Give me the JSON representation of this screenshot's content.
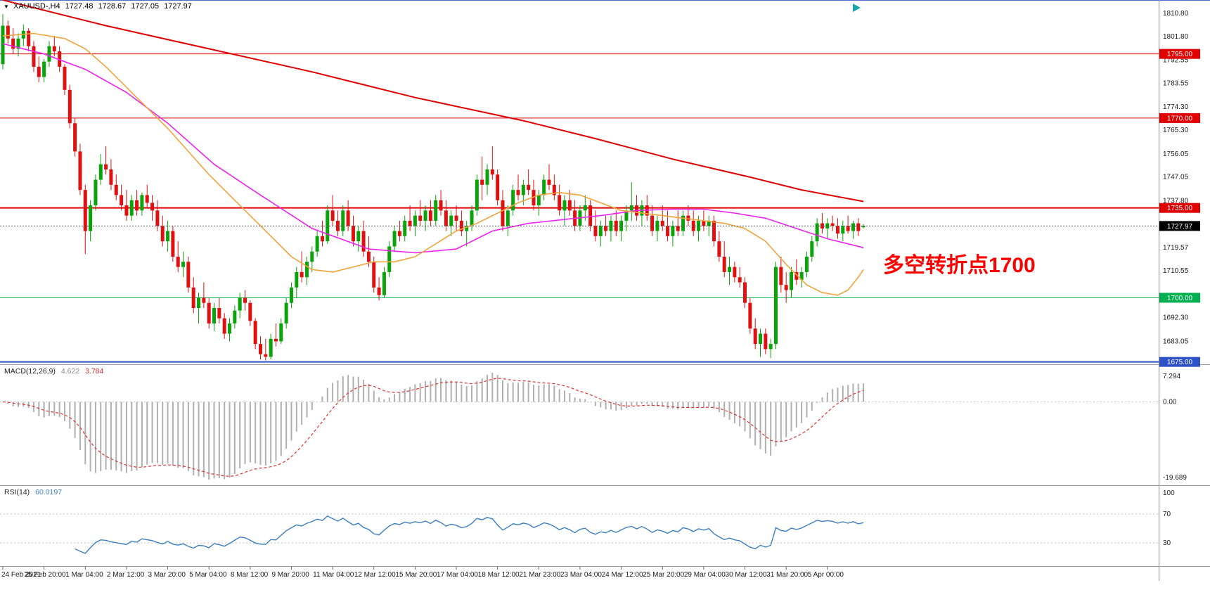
{
  "header": {
    "dropdown_glyph": "▼",
    "symbol_timeframe": "XAUUSD-,H4",
    "open": "1727.48",
    "high": "1728.67",
    "low": "1727.05",
    "close": "1727.97"
  },
  "annotation": {
    "text": "多空转折点1700",
    "color": "#ff0000"
  },
  "indicators": {
    "macd": {
      "name": "MACD(12,26,9)",
      "main_value": "4.622",
      "signal_value": "3.784",
      "axis_max_label": "7.294",
      "axis_zero_label": "0.00",
      "axis_min_label": "-19.689",
      "params": {
        "fast": 12,
        "slow": 26,
        "signal": 9
      },
      "histogram_color": "#b0b0b0",
      "signal_color": "#e03131"
    },
    "rsi": {
      "name": "RSI(14)",
      "value": "60.0197",
      "period": 14,
      "levels": [
        70,
        30
      ],
      "axis_labels": [
        "100",
        "70",
        "30"
      ],
      "line_color": "#3e7fc1"
    }
  },
  "price_axis": {
    "labels": [
      1810.8,
      1801.8,
      1792.55,
      1783.55,
      1774.3,
      1765.3,
      1756.05,
      1747.05,
      1737.8,
      1719.57,
      1710.55,
      1692.3,
      1683.05
    ]
  },
  "hlines": [
    {
      "price": 1795.0,
      "tag": "1795.00",
      "color": "#e00000",
      "width": 1
    },
    {
      "price": 1770.0,
      "tag": "1770.00",
      "color": "#e00000",
      "width": 1
    },
    {
      "price": 1735.0,
      "tag": "1735.00",
      "color": "#e00000",
      "width": 2
    },
    {
      "price": 1700.0,
      "tag": "1700.00",
      "color": "#00b050",
      "width": 1
    },
    {
      "price": 1675.0,
      "tag": "1675.00",
      "color": "#2d52c8",
      "width": 2
    }
  ],
  "current_price": {
    "value": 1727.97,
    "tag": "1727.97",
    "line_color": "#555555",
    "tag_bg": "#000000"
  },
  "time_axis": {
    "bars_per_label": 8,
    "labels": [
      "24 Feb 2021",
      "25 Feb 20:00",
      "1 Mar 04:00",
      "2 Mar 12:00",
      "3 Mar 20:00",
      "5 Mar 04:00",
      "8 Mar 12:00",
      "9 Mar 20:00",
      "11 Mar 04:00",
      "12 Mar 12:00",
      "15 Mar 20:00",
      "17 Mar 04:00",
      "18 Mar 12:00",
      "21 Mar 23:00",
      "23 Mar 04:00",
      "24 Mar 12:00",
      "25 Mar 20:00",
      "29 Mar 04:00",
      "30 Mar 12:00",
      "31 Mar 20:00",
      "5 Apr 00:00"
    ]
  },
  "chart_data": {
    "type": "candlestick",
    "symbol": "XAUUSD-",
    "timeframe": "H4",
    "ylim": [
      1670,
      1813
    ],
    "up_color": "#0aa30a",
    "down_color": "#e01010",
    "candles": [
      [
        1791,
        1810.5,
        1789,
        1806
      ],
      [
        1806,
        1808,
        1799,
        1801
      ],
      [
        1801,
        1805,
        1795,
        1797
      ],
      [
        1797,
        1803,
        1794,
        1801
      ],
      [
        1801,
        1806.5,
        1798,
        1804
      ],
      [
        1804,
        1805,
        1796,
        1798
      ],
      [
        1798,
        1800,
        1788,
        1790
      ],
      [
        1790,
        1794,
        1784,
        1786
      ],
      [
        1786,
        1793,
        1784,
        1792
      ],
      [
        1792,
        1800,
        1790,
        1798
      ],
      [
        1798,
        1802,
        1794,
        1796
      ],
      [
        1796,
        1798,
        1788,
        1790
      ],
      [
        1790,
        1791,
        1779,
        1781
      ],
      [
        1781,
        1783,
        1766,
        1768
      ],
      [
        1768,
        1770,
        1755,
        1757
      ],
      [
        1757,
        1760,
        1740,
        1742
      ],
      [
        1742,
        1744,
        1717,
        1726
      ],
      [
        1726,
        1738,
        1722,
        1736
      ],
      [
        1736,
        1748,
        1734,
        1746
      ],
      [
        1746,
        1756,
        1744,
        1752
      ],
      [
        1752,
        1759,
        1748,
        1750
      ],
      [
        1750,
        1754,
        1742,
        1744
      ],
      [
        1744,
        1748,
        1738,
        1740
      ],
      [
        1740,
        1744,
        1734,
        1736
      ],
      [
        1736,
        1742,
        1730,
        1732
      ],
      [
        1732,
        1740,
        1730,
        1738
      ],
      [
        1738,
        1742,
        1732,
        1734
      ],
      [
        1734,
        1741,
        1732,
        1740
      ],
      [
        1740,
        1744,
        1735,
        1737
      ],
      [
        1737,
        1740,
        1730,
        1734
      ],
      [
        1734,
        1738,
        1726,
        1728
      ],
      [
        1728,
        1732,
        1720,
        1722
      ],
      [
        1722,
        1730,
        1718,
        1726
      ],
      [
        1726,
        1728,
        1714,
        1716
      ],
      [
        1716,
        1722,
        1710,
        1712
      ],
      [
        1712,
        1718,
        1708,
        1714
      ],
      [
        1714,
        1716,
        1702,
        1704
      ],
      [
        1704,
        1708,
        1694,
        1696
      ],
      [
        1696,
        1702,
        1690,
        1700
      ],
      [
        1700,
        1706,
        1696,
        1698
      ],
      [
        1698,
        1700,
        1688,
        1690
      ],
      [
        1690,
        1698,
        1687,
        1696
      ],
      [
        1696,
        1700,
        1690,
        1692
      ],
      [
        1692,
        1694,
        1684,
        1686
      ],
      [
        1686,
        1692,
        1683,
        1690
      ],
      [
        1690,
        1697,
        1688,
        1695
      ],
      [
        1695,
        1702,
        1692,
        1700
      ],
      [
        1700,
        1703,
        1695,
        1698
      ],
      [
        1698,
        1699,
        1689,
        1691
      ],
      [
        1691,
        1692,
        1680,
        1682
      ],
      [
        1682,
        1685,
        1676,
        1678
      ],
      [
        1678,
        1684,
        1675.6,
        1677
      ],
      [
        1677,
        1686,
        1676,
        1684
      ],
      [
        1684,
        1690,
        1681,
        1683
      ],
      [
        1683,
        1692,
        1682,
        1690
      ],
      [
        1690,
        1700,
        1688,
        1698
      ],
      [
        1698,
        1706,
        1696,
        1704
      ],
      [
        1704,
        1712,
        1700,
        1710
      ],
      [
        1710,
        1718,
        1706,
        1708
      ],
      [
        1708,
        1716,
        1705,
        1714
      ],
      [
        1714,
        1720,
        1710,
        1718
      ],
      [
        1718,
        1726,
        1716,
        1724
      ],
      [
        1724,
        1730,
        1720,
        1722
      ],
      [
        1722,
        1736,
        1721,
        1734
      ],
      [
        1734,
        1740,
        1728,
        1730
      ],
      [
        1730,
        1734,
        1724,
        1726
      ],
      [
        1726,
        1736,
        1724,
        1734
      ],
      [
        1734,
        1738,
        1726,
        1728
      ],
      [
        1728,
        1732,
        1720,
        1722
      ],
      [
        1722,
        1728,
        1718,
        1726
      ],
      [
        1726,
        1730,
        1716,
        1718
      ],
      [
        1718,
        1724,
        1712,
        1714
      ],
      [
        1714,
        1716,
        1702,
        1704
      ],
      [
        1704,
        1708,
        1699,
        1701
      ],
      [
        1701,
        1712,
        1700,
        1710
      ],
      [
        1710,
        1722,
        1708,
        1720
      ],
      [
        1720,
        1728,
        1718,
        1726
      ],
      [
        1726,
        1730,
        1722,
        1724
      ],
      [
        1724,
        1732,
        1722,
        1730
      ],
      [
        1730,
        1736,
        1726,
        1728
      ],
      [
        1728,
        1734,
        1724,
        1732
      ],
      [
        1732,
        1738,
        1728,
        1730
      ],
      [
        1730,
        1736,
        1726,
        1734
      ],
      [
        1734,
        1738,
        1728,
        1730
      ],
      [
        1730,
        1740,
        1728,
        1738
      ],
      [
        1738,
        1742,
        1732,
        1734
      ],
      [
        1734,
        1738,
        1726,
        1728
      ],
      [
        1728,
        1734,
        1724,
        1732
      ],
      [
        1732,
        1736,
        1726,
        1730
      ],
      [
        1730,
        1734,
        1724,
        1726
      ],
      [
        1726,
        1730,
        1720,
        1728
      ],
      [
        1728,
        1736,
        1726,
        1734
      ],
      [
        1734,
        1748,
        1732,
        1746
      ],
      [
        1746,
        1755,
        1738,
        1744
      ],
      [
        1744,
        1752,
        1740,
        1750
      ],
      [
        1750,
        1759,
        1746,
        1748
      ],
      [
        1748,
        1750,
        1736,
        1738
      ],
      [
        1738,
        1742,
        1726,
        1728
      ],
      [
        1728,
        1736,
        1724,
        1734
      ],
      [
        1734,
        1744,
        1732,
        1742
      ],
      [
        1742,
        1748,
        1738,
        1740
      ],
      [
        1740,
        1746,
        1736,
        1744
      ],
      [
        1744,
        1750,
        1740,
        1742
      ],
      [
        1742,
        1746,
        1734,
        1736
      ],
      [
        1736,
        1742,
        1732,
        1740
      ],
      [
        1740,
        1748,
        1738,
        1746
      ],
      [
        1746,
        1752,
        1742,
        1744
      ],
      [
        1744,
        1748,
        1738,
        1740
      ],
      [
        1740,
        1744,
        1732,
        1734
      ],
      [
        1734,
        1740,
        1728,
        1738
      ],
      [
        1738,
        1742,
        1732,
        1734
      ],
      [
        1734,
        1738,
        1726,
        1728
      ],
      [
        1728,
        1736,
        1726,
        1734
      ],
      [
        1734,
        1740,
        1730,
        1736
      ],
      [
        1736,
        1738,
        1726,
        1728
      ],
      [
        1728,
        1734,
        1722,
        1724
      ],
      [
        1724,
        1730,
        1720,
        1728
      ],
      [
        1728,
        1732,
        1724,
        1726
      ],
      [
        1726,
        1732,
        1722,
        1730
      ],
      [
        1730,
        1734,
        1724,
        1726
      ],
      [
        1726,
        1732,
        1722,
        1730
      ],
      [
        1730,
        1736,
        1726,
        1734
      ],
      [
        1734,
        1745,
        1730,
        1736
      ],
      [
        1736,
        1740,
        1730,
        1732
      ],
      [
        1732,
        1738,
        1728,
        1736
      ],
      [
        1736,
        1740,
        1730,
        1732
      ],
      [
        1732,
        1736,
        1724,
        1726
      ],
      [
        1726,
        1732,
        1722,
        1730
      ],
      [
        1730,
        1736,
        1726,
        1728
      ],
      [
        1728,
        1734,
        1722,
        1724
      ],
      [
        1724,
        1730,
        1720,
        1728
      ],
      [
        1728,
        1734,
        1724,
        1726
      ],
      [
        1726,
        1734,
        1724,
        1732
      ],
      [
        1732,
        1736,
        1728,
        1730
      ],
      [
        1730,
        1734,
        1724,
        1726
      ],
      [
        1726,
        1732,
        1722,
        1730
      ],
      [
        1730,
        1734,
        1726,
        1728
      ],
      [
        1728,
        1732,
        1724,
        1730
      ],
      [
        1730,
        1732,
        1720,
        1722
      ],
      [
        1722,
        1726,
        1714,
        1716
      ],
      [
        1716,
        1722,
        1708,
        1710
      ],
      [
        1710,
        1716,
        1705,
        1712
      ],
      [
        1712,
        1714,
        1706,
        1708
      ],
      [
        1708,
        1712,
        1704,
        1706
      ],
      [
        1706,
        1708,
        1696,
        1698
      ],
      [
        1698,
        1700,
        1686,
        1688
      ],
      [
        1688,
        1692,
        1680,
        1682
      ],
      [
        1682,
        1688,
        1677,
        1686
      ],
      [
        1686,
        1688,
        1678,
        1680
      ],
      [
        1680,
        1684,
        1676.5,
        1682
      ],
      [
        1682,
        1714,
        1680,
        1712
      ],
      [
        1712,
        1716,
        1702,
        1705
      ],
      [
        1705,
        1710,
        1698,
        1703
      ],
      [
        1703,
        1712,
        1700,
        1710
      ],
      [
        1710,
        1715,
        1705,
        1707
      ],
      [
        1707,
        1712,
        1704,
        1710
      ],
      [
        1710,
        1718,
        1708,
        1716
      ],
      [
        1716,
        1724,
        1714,
        1722
      ],
      [
        1722,
        1731,
        1720,
        1729
      ],
      [
        1729,
        1733,
        1725,
        1727
      ],
      [
        1727,
        1731,
        1723,
        1729
      ],
      [
        1729,
        1732,
        1726,
        1728
      ],
      [
        1728,
        1731,
        1723,
        1725
      ],
      [
        1725,
        1730,
        1722,
        1728
      ],
      [
        1728,
        1732,
        1725,
        1726
      ],
      [
        1726,
        1730,
        1723,
        1729
      ],
      [
        1729,
        1731,
        1724,
        1726
      ],
      [
        1727.48,
        1728.67,
        1727.05,
        1727.97
      ]
    ],
    "moving_averages": [
      {
        "name": "ma-slow",
        "color": "#e00000",
        "width": 2,
        "points": [
          [
            0,
            1816
          ],
          [
            20,
            1806
          ],
          [
            40,
            1797
          ],
          [
            60,
            1788
          ],
          [
            80,
            1778
          ],
          [
            101,
            1769
          ],
          [
            115,
            1762
          ],
          [
            130,
            1754
          ],
          [
            145,
            1747
          ],
          [
            155,
            1742
          ],
          [
            167,
            1737.5
          ]
        ]
      },
      {
        "name": "ma-medium",
        "color": "#ee22ee",
        "width": 1.6,
        "points": [
          [
            0,
            1799
          ],
          [
            8,
            1795
          ],
          [
            16,
            1789
          ],
          [
            24,
            1780
          ],
          [
            32,
            1768
          ],
          [
            41,
            1752
          ],
          [
            50,
            1740
          ],
          [
            60,
            1727
          ],
          [
            71,
            1719
          ],
          [
            80,
            1717.5
          ],
          [
            88,
            1719
          ],
          [
            95,
            1726
          ],
          [
            102,
            1729
          ],
          [
            109,
            1730.5
          ],
          [
            116,
            1732
          ],
          [
            123,
            1734
          ],
          [
            130,
            1734.5
          ],
          [
            136,
            1734.5
          ],
          [
            142,
            1733
          ],
          [
            148,
            1731
          ],
          [
            154,
            1727
          ],
          [
            160,
            1723
          ],
          [
            167,
            1719.5
          ]
        ]
      },
      {
        "name": "ma-fast",
        "color": "#f0a43c",
        "width": 1.6,
        "points": [
          [
            0,
            1802
          ],
          [
            6,
            1803
          ],
          [
            12,
            1801
          ],
          [
            16,
            1797
          ],
          [
            20,
            1790
          ],
          [
            24,
            1782
          ],
          [
            28,
            1774
          ],
          [
            32,
            1766
          ],
          [
            36,
            1757
          ],
          [
            40,
            1748
          ],
          [
            44,
            1740
          ],
          [
            48,
            1732
          ],
          [
            52,
            1724
          ],
          [
            56,
            1716
          ],
          [
            60,
            1711
          ],
          [
            64,
            1710
          ],
          [
            68,
            1712
          ],
          [
            72,
            1714
          ],
          [
            76,
            1714
          ],
          [
            80,
            1716
          ],
          [
            84,
            1721
          ],
          [
            88,
            1726
          ],
          [
            92,
            1729
          ],
          [
            96,
            1733
          ],
          [
            100,
            1737
          ],
          [
            104,
            1740
          ],
          [
            108,
            1741
          ],
          [
            112,
            1740
          ],
          [
            116,
            1737
          ],
          [
            120,
            1734
          ],
          [
            124,
            1733
          ],
          [
            128,
            1732
          ],
          [
            132,
            1731
          ],
          [
            136,
            1730
          ],
          [
            140,
            1729
          ],
          [
            144,
            1727
          ],
          [
            148,
            1722
          ],
          [
            152,
            1713
          ],
          [
            156,
            1705
          ],
          [
            159,
            1702
          ],
          [
            162,
            1701
          ],
          [
            164,
            1703
          ],
          [
            166,
            1708
          ],
          [
            167,
            1711
          ]
        ]
      }
    ]
  }
}
